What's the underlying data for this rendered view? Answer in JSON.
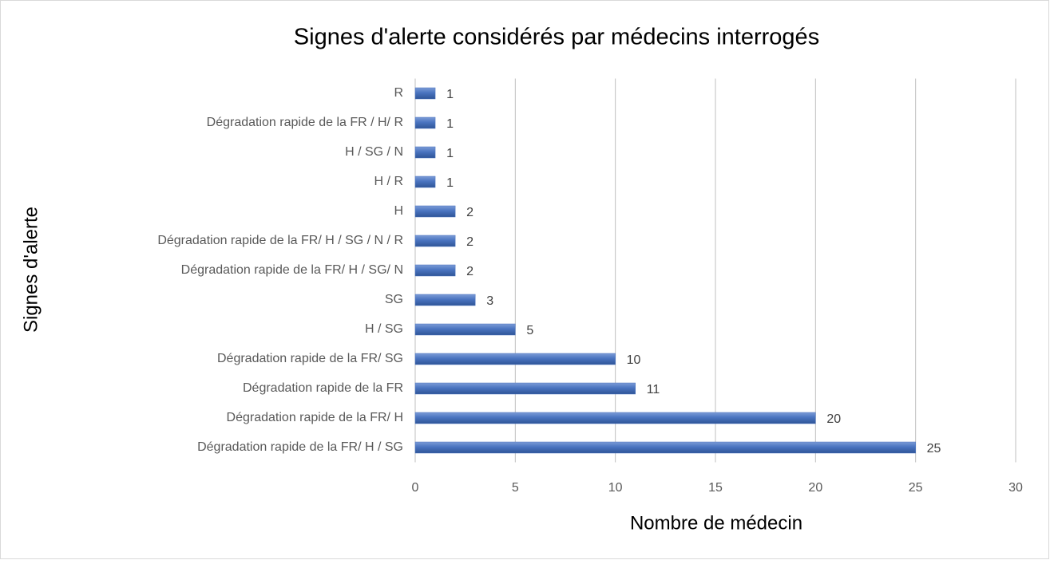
{
  "chart_data": {
    "type": "barh",
    "title": "Signes d'alerte considérés par médecins interrogés",
    "xlabel": "Nombre de médecin",
    "ylabel": "Signes d'alerte",
    "categories": [
      "R",
      "Dégradation rapide de la FR / H/ R",
      "H / SG / N",
      "H / R",
      "H",
      "Dégradation rapide de la FR/ H / SG / N / R",
      "Dégradation rapide de la FR/ H / SG/ N",
      "SG",
      "H / SG",
      "Dégradation rapide de la FR/ SG",
      "Dégradation rapide de la FR",
      "Dégradation rapide de la FR/ H",
      "Dégradation rapide de la FR/ H / SG"
    ],
    "values": [
      1,
      1,
      1,
      1,
      2,
      2,
      2,
      3,
      5,
      10,
      11,
      20,
      25
    ],
    "color": "#4a74c0",
    "xlim": [
      0,
      30
    ],
    "xticks": [
      0,
      5,
      10,
      15,
      20,
      25,
      30
    ],
    "grid": true
  }
}
